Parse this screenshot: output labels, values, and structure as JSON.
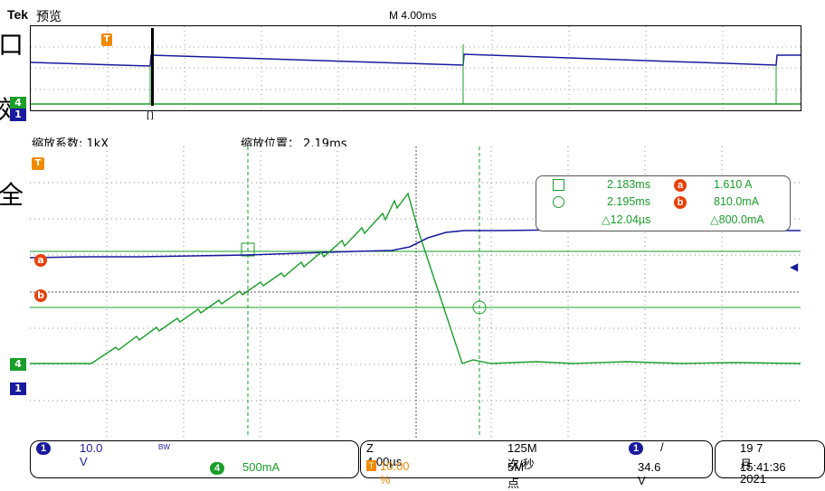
{
  "header": {
    "brand": "Tek",
    "mode": "预览",
    "timebase_overview": "M 4.00ms"
  },
  "side_glyphs": [
    "口",
    "效",
    "全"
  ],
  "zoom": {
    "factor_label": "缩放系数: 1kX",
    "position_label": "缩放位置： 2.19ms"
  },
  "overview": {
    "trigger_marker": "T",
    "ch4_marker": "4",
    "ch1_marker": "1",
    "window_marker": "[]"
  },
  "main": {
    "trigger_marker": "T",
    "cursor_a_marker": "a",
    "cursor_b_marker": "b",
    "ch4_marker": "4",
    "ch1_marker": "1"
  },
  "readout": {
    "row1_time": "2.183ms",
    "row1_badge": "a",
    "row1_value": "1.610 A",
    "row2_time": "2.195ms",
    "row2_badge": "b",
    "row2_value": "810.0mA",
    "row3_time": "△12.04µs",
    "row3_value": "△800.0mA"
  },
  "status": {
    "ch1_badge": "1",
    "ch1_scale": "10.0 V",
    "ch1_bw": "BW",
    "ch4_badge": "4",
    "ch4_scale": "500mA",
    "zoom_time": "Z 4.00µs",
    "trigger_pos": "10.00 %",
    "sample_rate": "125M次/秒",
    "record_length": "5M 点",
    "trig_badge": "1",
    "trig_slope": "/",
    "trig_level": "34.6 V",
    "date": "19 7月 2021",
    "time": "15:41:36"
  },
  "colors": {
    "ch1": "#1a1a9e",
    "ch4": "#1a9e2a",
    "trigger": "#f08a00",
    "cursor": "#e6400a"
  }
}
